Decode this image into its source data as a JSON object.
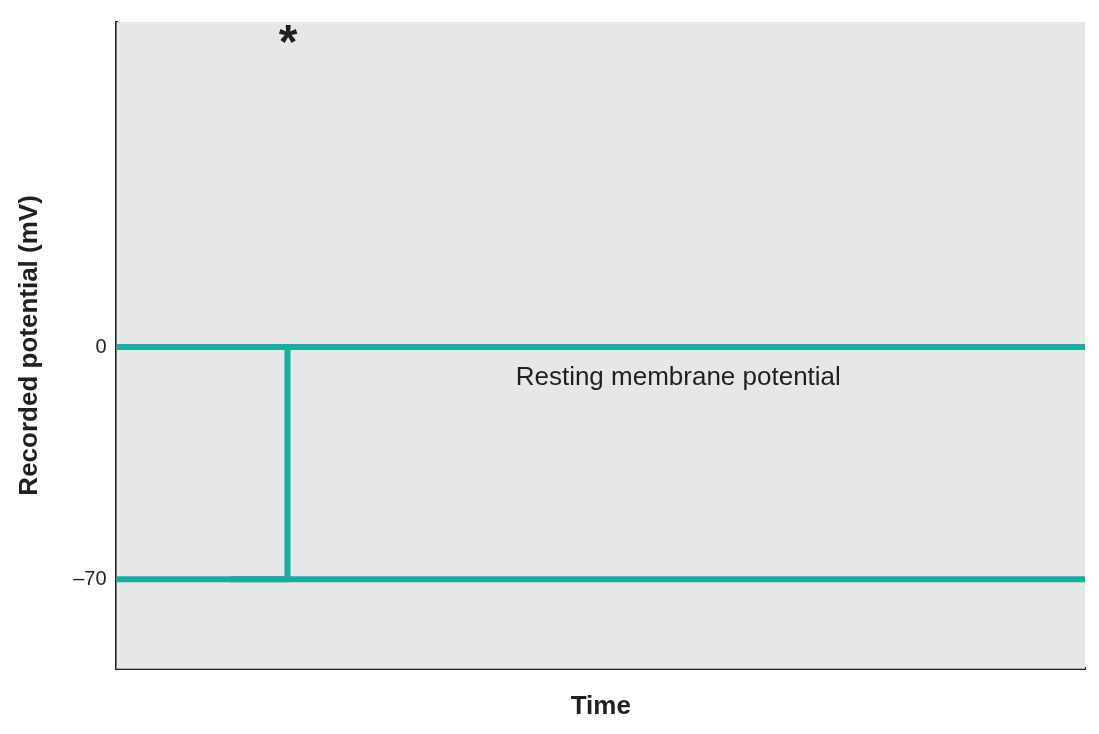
{
  "chart_data": {
    "type": "line",
    "xlabel": "Time",
    "ylabel": "Recorded potential (mV)",
    "categories": [
      null,
      null,
      null,
      null,
      null,
      null,
      null,
      null,
      null,
      null,
      null,
      null,
      null,
      null,
      null,
      null,
      null,
      null
    ],
    "ylim": [
      -97,
      98
    ],
    "yticks": [
      0,
      {
        "value": -70,
        "label": "–70"
      }
    ],
    "tick_labels": "y",
    "legend": false,
    "marker": "none",
    "line_style": "solid",
    "series": [
      {
        "color": "#1aaca0",
        "values": [
          0,
          0,
          0,
          0,
          0,
          0,
          0,
          0,
          0,
          0,
          0,
          0,
          0,
          0,
          0,
          0,
          0,
          0
        ]
      },
      {
        "color": "#1aaca0",
        "values": [
          -70,
          -70,
          -70,
          -70,
          -70,
          -70,
          -70,
          -70,
          -70,
          -70,
          -70,
          -70,
          -70,
          -70,
          -70,
          -70,
          -70,
          -70
        ]
      },
      {
        "type": "step",
        "color": "#1aaca0",
        "values": [
          null,
          null,
          -70,
          0,
          null,
          null,
          null,
          null,
          null,
          null,
          null,
          null,
          null,
          null,
          null,
          null,
          null,
          null
        ]
      }
    ],
    "annotations": [
      "*",
      "Resting membrane potential"
    ]
  }
}
